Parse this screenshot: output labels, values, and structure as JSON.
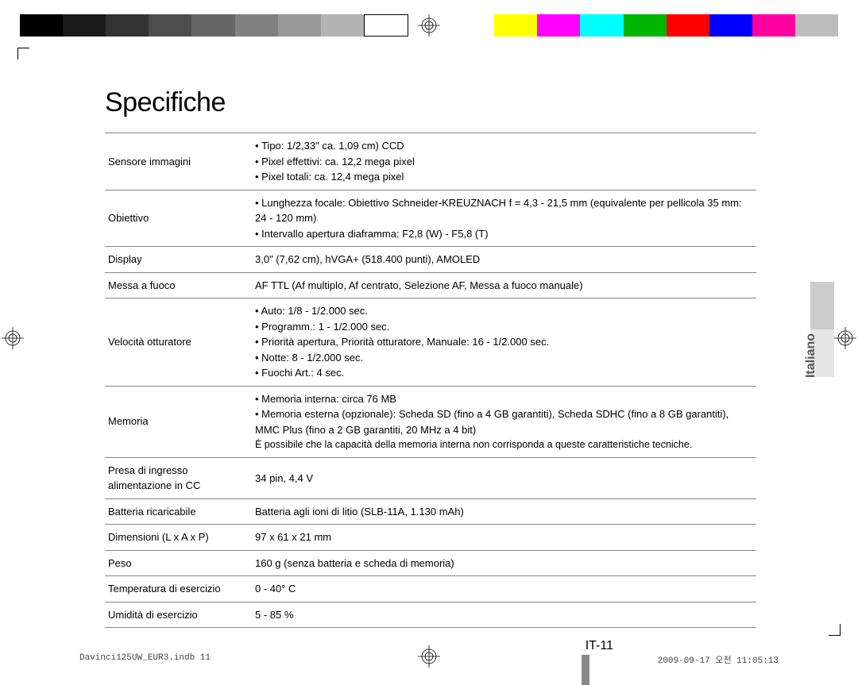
{
  "colorbar": {
    "left": [
      "#000000",
      "#1a1a1a",
      "#333333",
      "#4d4d4d",
      "#666666",
      "#808080",
      "#999999",
      "#b3b3b3",
      "#ffffff"
    ],
    "right": [
      "#ffff00",
      "#ff00ff",
      "#00ffff",
      "#00b400",
      "#ff0000",
      "#0000ff",
      "#ff00a0",
      "#bcbcbc"
    ],
    "whiteBoxBorder": "#000000"
  },
  "title": "Specifiche",
  "sidetab": "Italiano",
  "rows": [
    {
      "label": "Sensore immagini",
      "items": [
        "Tipo: 1/2,33\" ca. 1,09 cm) CCD",
        "Pixel effettivi: ca. 12,2 mega pixel",
        "Pixel totali: ca. 12,4 mega pixel"
      ]
    },
    {
      "label": "Obiettivo",
      "items": [
        "Lunghezza focale: Obiettivo Schneider-KREUZNACH f = 4,3 - 21,5 mm (equivalente per pellicola 35 mm: 24 - 120 mm)",
        "Intervallo apertura diaframma: F2,8 (W) - F5,8 (T)"
      ]
    },
    {
      "label": "Display",
      "text": "3,0\" (7,62 cm), hVGA+ (518.400 punti), AMOLED"
    },
    {
      "label": "Messa a fuoco",
      "text": "AF TTL (Af multiplo, Af centrato, Selezione AF, Messa a fuoco manuale)"
    },
    {
      "label": "Velocità otturatore",
      "items": [
        "Auto: 1/8 - 1/2.000 sec.",
        "Programm.: 1 - 1/2.000 sec.",
        "Priorità apertura, Priorità otturatore, Manuale: 16 - 1/2.000 sec.",
        "Notte: 8 - 1/2.000 sec.",
        "Fuochi Art.: 4 sec."
      ]
    },
    {
      "label": "Memoria",
      "items": [
        "Memoria interna: circa 76 MB",
        "Memoria esterna (opzionale): Scheda SD (fino a 4 GB garantiti), Scheda SDHC (fino a 8 GB garantiti), MMC Plus (fino a 2 GB garantiti, 20 MHz a 4 bit)"
      ],
      "note": "È possibile che la capacità della memoria interna non corrisponda a queste caratteristiche tecniche."
    },
    {
      "label": "Presa di ingresso alimentazione in CC",
      "text": "34 pin, 4,4 V"
    },
    {
      "label": "Batteria ricaricabile",
      "text": "Batteria agli ioni di litio (SLB-11A, 1.130 mAh)"
    },
    {
      "label": "Dimensioni (L x A x P)",
      "text": "97 x 61 x 21 mm"
    },
    {
      "label": "Peso",
      "text": "160 g (senza batteria e scheda di memoria)"
    },
    {
      "label": "Temperatura di esercizio",
      "text": "0 - 40° C"
    },
    {
      "label": "Umidità di esercizio",
      "text": "5 - 85 %"
    }
  ],
  "pageNumber": "IT-11",
  "footer": {
    "left": "Davinci125UW_EUR3.indb   11",
    "right": "2009-09-17   오전 11:05:13"
  }
}
